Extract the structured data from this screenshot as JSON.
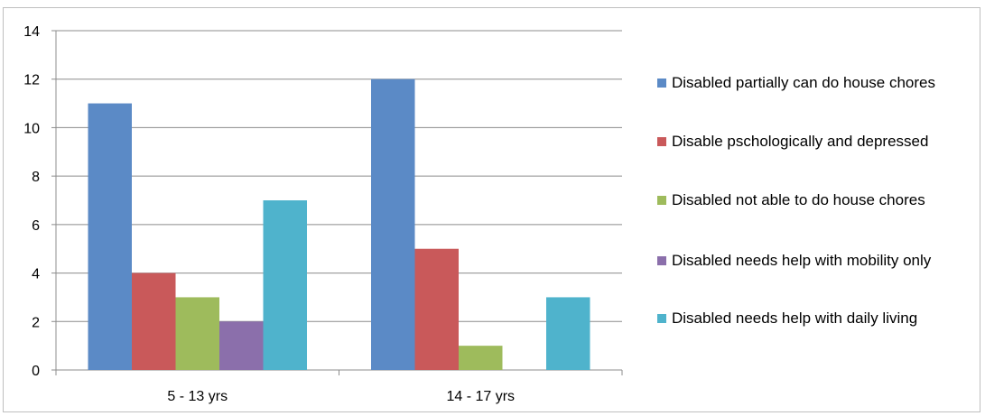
{
  "chart_data": {
    "type": "bar",
    "categories": [
      "5 - 13 yrs",
      "14 - 17 yrs"
    ],
    "series": [
      {
        "name": "Disabled partially can do house chores",
        "color": "#5b8ac6",
        "values": [
          11,
          12
        ]
      },
      {
        "name": "Disable pschologically and depressed",
        "color": "#c9595a",
        "values": [
          4,
          5
        ]
      },
      {
        "name": "Disabled not able to do house chores",
        "color": "#9ebb5c",
        "values": [
          3,
          1
        ]
      },
      {
        "name": "Disabled needs help with mobility only",
        "color": "#8b6fab",
        "values": [
          2,
          0
        ]
      },
      {
        "name": "Disabled needs help with daily living",
        "color": "#4fb3cc",
        "values": [
          7,
          3
        ]
      }
    ],
    "ylim": [
      0,
      14
    ],
    "yticks": [
      0,
      2,
      4,
      6,
      8,
      10,
      12,
      14
    ],
    "grid": true,
    "legend_position": "right"
  }
}
